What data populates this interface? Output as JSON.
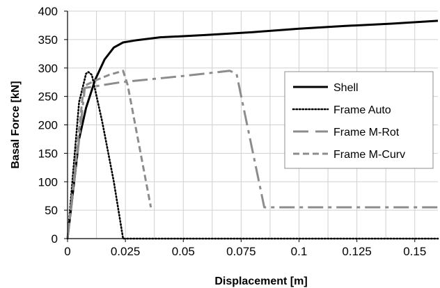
{
  "chart_data": {
    "type": "line",
    "xlabel": "Displacement [m]",
    "ylabel": "Basal Force [kN]",
    "xlim": [
      0,
      0.16
    ],
    "ylim": [
      0,
      400
    ],
    "xticks": [
      0,
      0.025,
      0.05,
      0.075,
      0.1,
      0.125,
      0.15
    ],
    "xtick_labels": [
      "0",
      "0.025",
      "0.05",
      "0.075",
      "0.1",
      "0.125",
      "0.15"
    ],
    "yticks": [
      0,
      50,
      100,
      150,
      200,
      250,
      300,
      350,
      400
    ],
    "ytick_labels": [
      "0",
      "50",
      "100",
      "150",
      "200",
      "250",
      "300",
      "350",
      "400"
    ],
    "grid": true,
    "legend_position": "right",
    "series": [
      {
        "name": "Shell",
        "color": "#000000",
        "style": "solid",
        "x": [
          0,
          0.002,
          0.005,
          0.008,
          0.012,
          0.016,
          0.02,
          0.024,
          0.03,
          0.04,
          0.05,
          0.06,
          0.08,
          0.1,
          0.12,
          0.14,
          0.16
        ],
        "y": [
          0,
          70,
          175,
          230,
          280,
          315,
          336,
          345,
          349,
          354,
          356,
          358,
          363,
          369,
          374,
          378,
          383
        ]
      },
      {
        "name": "Frame Auto",
        "color": "#000000",
        "style": "dotted",
        "x": [
          0,
          0.005,
          0.008,
          0.009,
          0.0105,
          0.015,
          0.02,
          0.024,
          0.03,
          0.16
        ],
        "y": [
          0,
          240,
          290,
          293,
          288,
          205,
          100,
          0,
          0,
          0
        ]
      },
      {
        "name": "Frame M-Rot",
        "color": "#8c8c8c",
        "style": "longdashdot",
        "x": [
          0,
          0.0075,
          0.023,
          0.05,
          0.07,
          0.073,
          0.085,
          0.16
        ],
        "y": [
          0,
          265,
          275,
          286,
          295,
          290,
          55,
          55
        ]
      },
      {
        "name": "Frame M-Curv",
        "color": "#8c8c8c",
        "style": "dashed",
        "x": [
          0,
          0.007,
          0.012,
          0.018,
          0.024,
          0.026,
          0.036
        ],
        "y": [
          0,
          268,
          278,
          288,
          295,
          270,
          55
        ]
      }
    ]
  }
}
